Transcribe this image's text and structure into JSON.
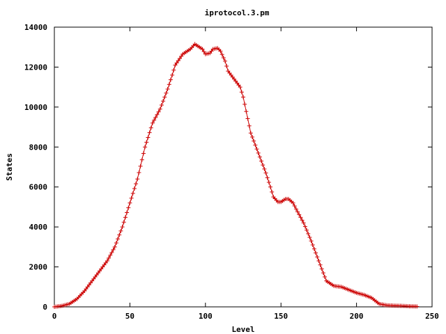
{
  "chart_data": {
    "type": "line",
    "title": "iprotocol.3.pm",
    "xlabel": "Level",
    "ylabel": "States",
    "xlim": [
      0,
      250
    ],
    "ylim": [
      0,
      14000
    ],
    "xticks": [
      0,
      50,
      100,
      150,
      200,
      250
    ],
    "yticks": [
      0,
      2000,
      4000,
      6000,
      8000,
      10000,
      12000,
      14000
    ],
    "grid": false,
    "legend": "none",
    "marker": "plus",
    "color": "#cc0000",
    "x": [
      0,
      5,
      10,
      15,
      20,
      25,
      30,
      35,
      40,
      45,
      50,
      55,
      60,
      65,
      70,
      75,
      78,
      80,
      85,
      90,
      93,
      95,
      98,
      100,
      103,
      105,
      108,
      110,
      113,
      115,
      118,
      120,
      123,
      125,
      130,
      135,
      140,
      143,
      145,
      148,
      150,
      153,
      155,
      158,
      160,
      165,
      170,
      175,
      180,
      185,
      190,
      195,
      200,
      205,
      210,
      215,
      220,
      225,
      230,
      235,
      240
    ],
    "y": [
      0,
      50,
      150,
      400,
      800,
      1300,
      1800,
      2300,
      3000,
      4000,
      5200,
      6400,
      8000,
      9200,
      9900,
      10900,
      11600,
      12100,
      12650,
      12900,
      13150,
      13050,
      12900,
      12650,
      12700,
      12900,
      12950,
      12800,
      12300,
      11800,
      11500,
      11300,
      11000,
      10500,
      8700,
      7700,
      6700,
      6000,
      5500,
      5250,
      5250,
      5400,
      5400,
      5200,
      4900,
      4200,
      3300,
      2300,
      1300,
      1050,
      1000,
      850,
      700,
      600,
      450,
      150,
      80,
      60,
      50,
      30,
      20
    ]
  }
}
